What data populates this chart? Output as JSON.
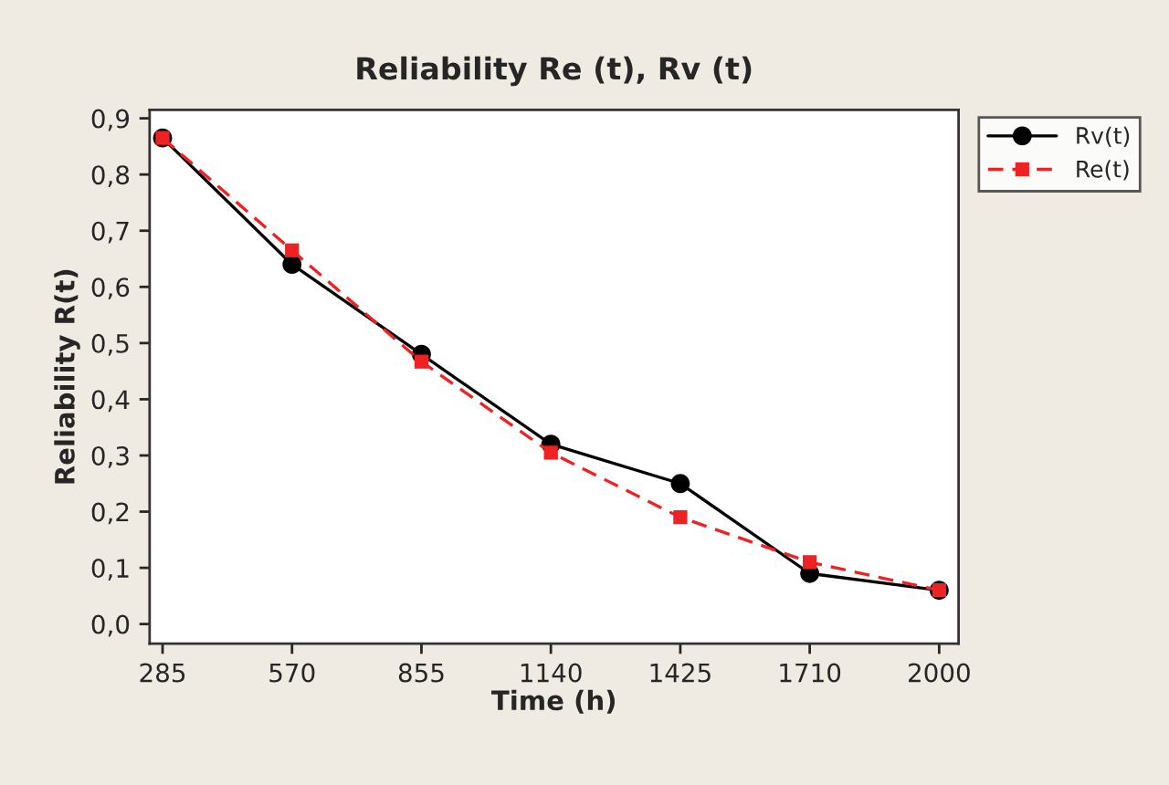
{
  "chart_data": {
    "type": "line",
    "title": "Reliability Re (t), Rv (t)",
    "xlabel": "Time (h)",
    "ylabel": "Reliability R(t)",
    "categories": [
      "285",
      "570",
      "855",
      "1140",
      "1425",
      "1710",
      "2000"
    ],
    "series": [
      {
        "name": "Rv(t)",
        "color": "#000000",
        "marker": "circle",
        "line_style": "solid",
        "values": [
          0.865,
          0.64,
          0.48,
          0.32,
          0.25,
          0.09,
          0.06
        ]
      },
      {
        "name": "Re(t)",
        "color": "#ee2222",
        "marker": "square",
        "line_style": "dashed",
        "values": [
          0.865,
          0.665,
          0.467,
          0.305,
          0.19,
          0.11,
          0.06
        ]
      }
    ],
    "ylim": [
      -0.035,
      0.915
    ],
    "yticks": [
      {
        "value": 0.0,
        "label": "0,0"
      },
      {
        "value": 0.1,
        "label": "0,1"
      },
      {
        "value": 0.2,
        "label": "0,2"
      },
      {
        "value": 0.3,
        "label": "0,3"
      },
      {
        "value": 0.4,
        "label": "0,4"
      },
      {
        "value": 0.5,
        "label": "0,5"
      },
      {
        "value": 0.6,
        "label": "0,6"
      },
      {
        "value": 0.7,
        "label": "0,7"
      },
      {
        "value": 0.8,
        "label": "0,8"
      },
      {
        "value": 0.9,
        "label": "0,9"
      }
    ],
    "grid": false,
    "legend": "top right"
  }
}
